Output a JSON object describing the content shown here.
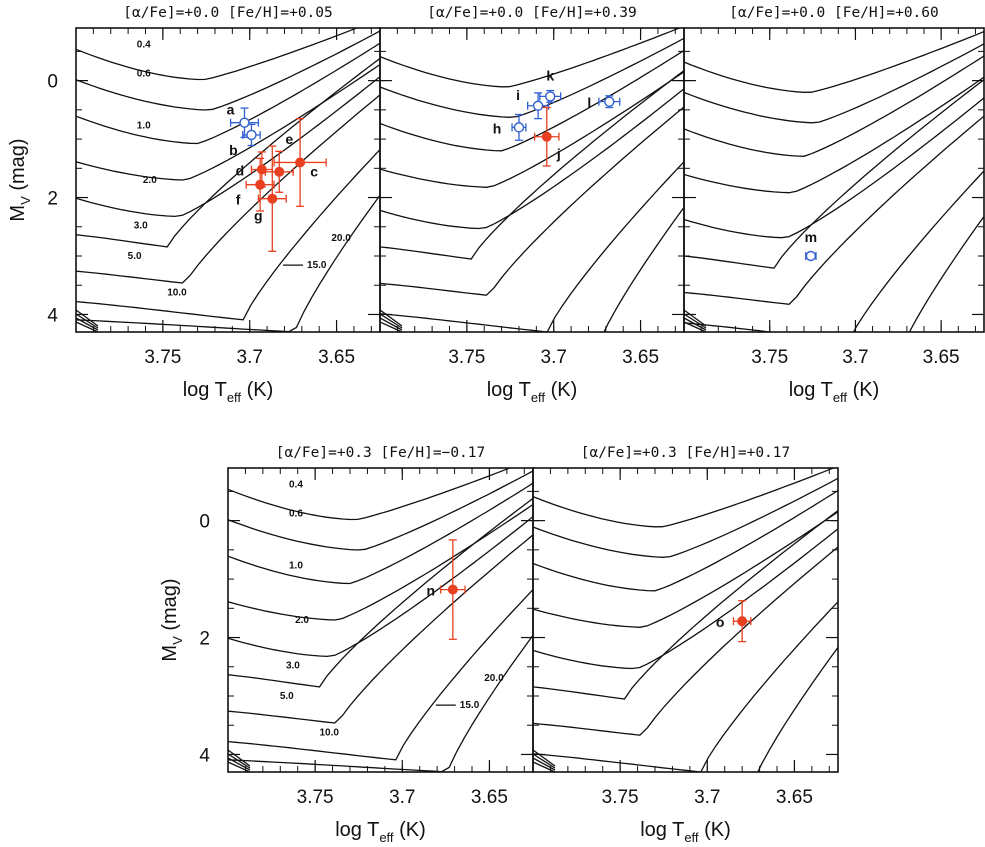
{
  "chart_data": [
    {
      "type": "scatter",
      "title": "[α/Fe]=+0.0  [Fe/H]=+0.05",
      "xlabel": "log T",
      "xlabel_sub": "eff",
      "xlabel_unit": " (K)",
      "ylabel": "M",
      "ylabel_sub": "V",
      "ylabel_unit": " (mag)",
      "xlim": [
        3.8,
        3.625
      ],
      "ylim": [
        4.3,
        -0.9
      ],
      "xticks": [
        "3.75",
        "3.7",
        "3.65"
      ],
      "yticks": [
        "0",
        "2",
        "4"
      ],
      "isochrone_labels": [
        "0.4",
        "0.6",
        "1.0",
        "2.0",
        "3.0",
        "5.0",
        "10.0",
        "15.0",
        "20.0"
      ],
      "points": [
        {
          "label": "a",
          "x": 3.703,
          "y": 0.72,
          "xerr": 0.008,
          "yerr": 0.25,
          "marker": "open",
          "color": "#3060d0"
        },
        {
          "label": "b",
          "x": 3.699,
          "y": 0.93,
          "xerr": 0.005,
          "yerr": 0.18,
          "marker": "open",
          "color": "#3060d0"
        },
        {
          "label": "c",
          "x": 3.671,
          "y": 1.4,
          "xerr": 0.015,
          "yerr": 0.75,
          "marker": "filled",
          "color": "#e84020"
        },
        {
          "label": "d",
          "x": 3.693,
          "y": 1.52,
          "xerr": 0.006,
          "yerr": 0.3,
          "marker": "filled",
          "color": "#e84020"
        },
        {
          "label": "e",
          "x": 3.683,
          "y": 1.56,
          "xerr": 0.008,
          "yerr": 0.35,
          "marker": "filled",
          "color": "#e84020"
        },
        {
          "label": "f",
          "x": 3.694,
          "y": 1.78,
          "xerr": 0.008,
          "yerr": 0.45,
          "marker": "filled",
          "color": "#e84020"
        },
        {
          "label": "g",
          "x": 3.687,
          "y": 2.02,
          "xerr": 0.008,
          "yerr": 0.9,
          "marker": "filled",
          "color": "#e84020"
        }
      ]
    },
    {
      "type": "scatter",
      "title": "[α/Fe]=+0.0  [Fe/H]=+0.39",
      "xlabel": "log T",
      "xlabel_sub": "eff",
      "xlabel_unit": " (K)",
      "xlim": [
        3.8,
        3.625
      ],
      "ylim": [
        4.3,
        -0.9
      ],
      "xticks": [
        "3.75",
        "3.7",
        "3.65"
      ],
      "points": [
        {
          "label": "h",
          "x": 3.72,
          "y": 0.8,
          "xerr": 0.004,
          "yerr": 0.22,
          "marker": "open",
          "color": "#3060d0"
        },
        {
          "label": "i",
          "x": 3.709,
          "y": 0.43,
          "xerr": 0.006,
          "yerr": 0.22,
          "marker": "open",
          "color": "#3060d0"
        },
        {
          "label": "k",
          "x": 3.702,
          "y": 0.27,
          "xerr": 0.006,
          "yerr": 0.1,
          "marker": "open",
          "color": "#3060d0"
        },
        {
          "label": "l",
          "x": 3.668,
          "y": 0.36,
          "xerr": 0.006,
          "yerr": 0.1,
          "marker": "open",
          "color": "#3060d0"
        },
        {
          "label": "j",
          "x": 3.704,
          "y": 0.96,
          "xerr": 0.007,
          "yerr": 0.5,
          "marker": "filled",
          "color": "#e84020"
        }
      ]
    },
    {
      "type": "scatter",
      "title": "[α/Fe]=+0.0  [Fe/H]=+0.60",
      "xlabel": "log T",
      "xlabel_sub": "eff",
      "xlabel_unit": " (K)",
      "xlim": [
        3.8,
        3.625
      ],
      "ylim": [
        4.3,
        -0.9
      ],
      "xticks": [
        "3.75",
        "3.7",
        "3.65"
      ],
      "points": [
        {
          "label": "m",
          "x": 3.726,
          "y": 3.0,
          "xerr": 0.003,
          "yerr": 0.04,
          "marker": "open",
          "color": "#3060d0"
        }
      ]
    },
    {
      "type": "scatter",
      "title": "[α/Fe]=+0.3  [Fe/H]=−0.17",
      "xlabel": "log T",
      "xlabel_sub": "eff",
      "xlabel_unit": " (K)",
      "ylabel": "M",
      "ylabel_sub": "V",
      "ylabel_unit": " (mag)",
      "xlim": [
        3.8,
        3.625
      ],
      "ylim": [
        4.3,
        -0.9
      ],
      "xticks": [
        "3.75",
        "3.7",
        "3.65"
      ],
      "yticks": [
        "0",
        "2",
        "4"
      ],
      "isochrone_labels": [
        "0.4",
        "0.6",
        "1.0",
        "2.0",
        "3.0",
        "5.0",
        "10.0",
        "15.0",
        "20.0"
      ],
      "points": [
        {
          "label": "n",
          "x": 3.671,
          "y": 1.18,
          "xerr": 0.007,
          "yerr": 0.85,
          "marker": "filled",
          "color": "#e84020"
        }
      ]
    },
    {
      "type": "scatter",
      "title": "[α/Fe]=+0.3  [Fe/H]=+0.17",
      "xlabel": "log T",
      "xlabel_sub": "eff",
      "xlabel_unit": " (K)",
      "xlim": [
        3.8,
        3.625
      ],
      "ylim": [
        4.3,
        -0.9
      ],
      "xticks": [
        "3.75",
        "3.7",
        "3.65"
      ],
      "points": [
        {
          "label": "o",
          "x": 3.68,
          "y": 1.72,
          "xerr": 0.005,
          "yerr": 0.35,
          "marker": "filled",
          "color": "#e84020"
        }
      ]
    }
  ]
}
